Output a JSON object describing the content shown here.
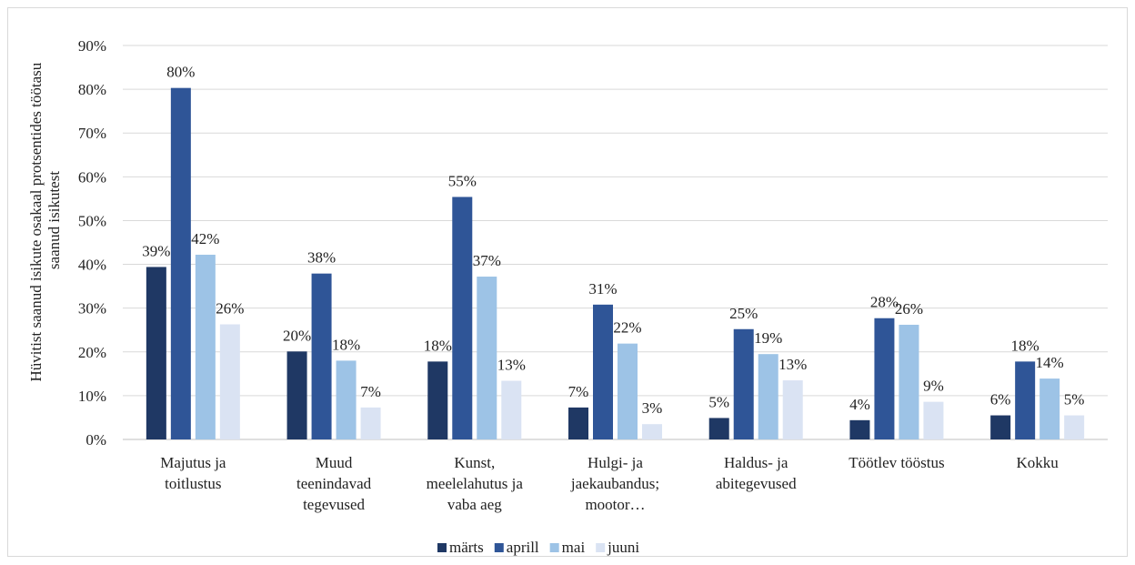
{
  "chart_data": {
    "type": "bar",
    "title": "",
    "xlabel": "",
    "ylabel_lines": [
      "Hüvitist saanud isikute osakaal protsentides töötasu",
      "saanud isikutest"
    ],
    "ylim": [
      0,
      90
    ],
    "yticks": [
      "0%",
      "10%",
      "20%",
      "30%",
      "40%",
      "50%",
      "60%",
      "70%",
      "80%",
      "90%"
    ],
    "grid": true,
    "legend_position": "bottom",
    "categories": [
      [
        "Majutus ja",
        "toitlustus"
      ],
      [
        "Muud",
        "teenindavad",
        "tegevused"
      ],
      [
        "Kunst,",
        "meelelahutus ja",
        "vaba aeg"
      ],
      [
        "Hulgi- ja",
        "jaekaubandus;",
        "mootor…"
      ],
      [
        "Haldus- ja",
        "abitegevused"
      ],
      [
        "Töötlev tööstus"
      ],
      [
        "Kokku"
      ]
    ],
    "series": [
      {
        "name": "märts",
        "color": "#1f3864",
        "values": [
          39.4,
          20.1,
          17.8,
          7.3,
          4.9,
          4.4,
          5.5
        ],
        "labels": [
          "39%",
          "20%",
          "18%",
          "7%",
          "5%",
          "4%",
          "6%"
        ]
      },
      {
        "name": "aprill",
        "color": "#2f5597",
        "values": [
          80.3,
          37.9,
          55.4,
          30.8,
          25.2,
          27.7,
          17.8
        ],
        "labels": [
          "80%",
          "38%",
          "55%",
          "31%",
          "25%",
          "28%",
          "18%"
        ]
      },
      {
        "name": "mai",
        "color": "#9dc3e6",
        "values": [
          42.2,
          18.0,
          37.2,
          21.9,
          19.5,
          26.2,
          13.9
        ],
        "labels": [
          "42%",
          "18%",
          "37%",
          "22%",
          "19%",
          "26%",
          "14%"
        ]
      },
      {
        "name": "juuni",
        "color": "#dae3f3",
        "values": [
          26.3,
          7.3,
          13.4,
          3.5,
          13.5,
          8.6,
          5.5
        ],
        "labels": [
          "26%",
          "7%",
          "13%",
          "3%",
          "13%",
          "9%",
          "5%"
        ]
      }
    ]
  }
}
